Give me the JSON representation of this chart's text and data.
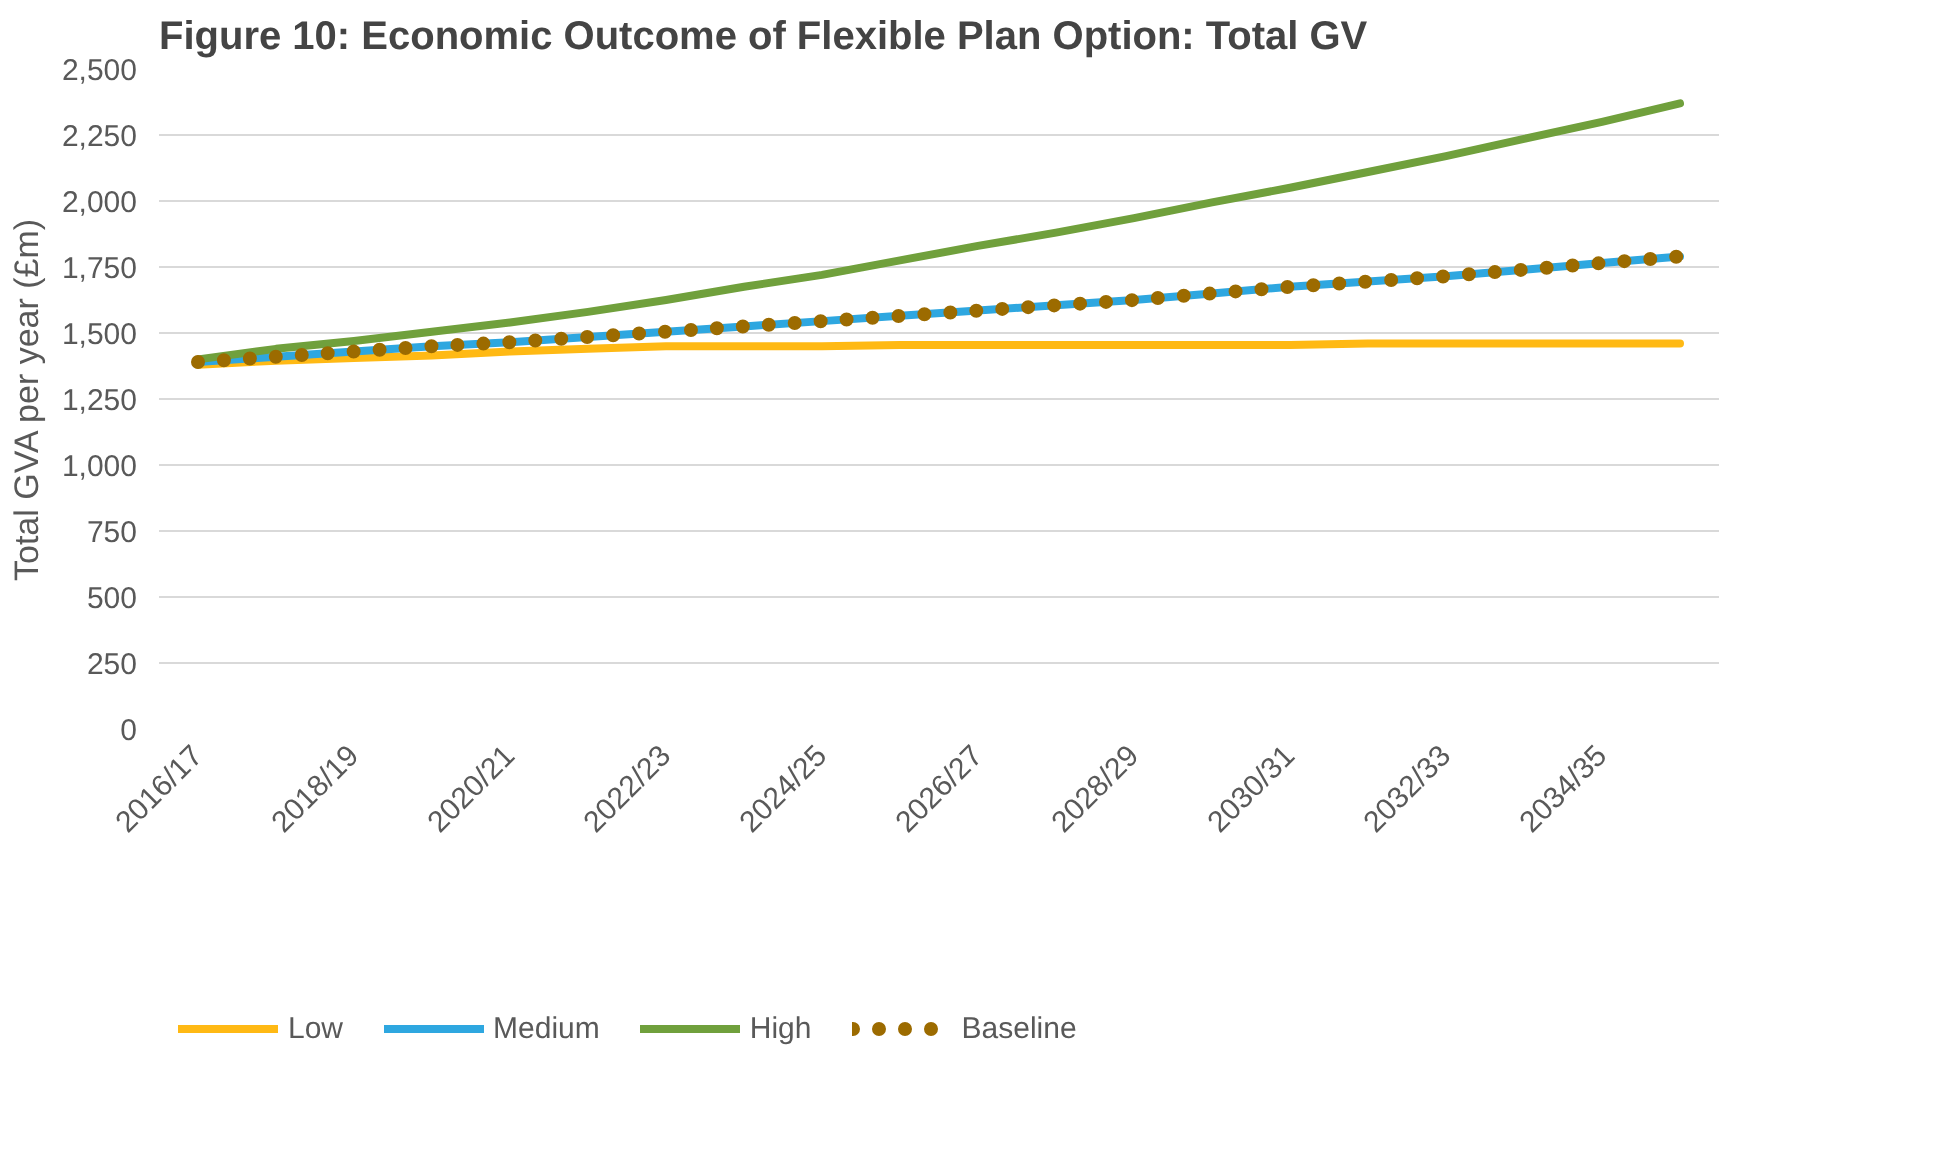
{
  "chart_data": {
    "type": "line",
    "title": "Figure 10: Economic Outcome of Flexible Plan Option: Total GV",
    "ylabel": "Total GVA per year (£m)",
    "categories": [
      "2016/17",
      null,
      "2018/19",
      null,
      "2020/21",
      null,
      "2022/23",
      null,
      "2024/25",
      null,
      "2026/27",
      null,
      "2028/29",
      null,
      "2030/31",
      null,
      "2032/33",
      null,
      "2034/35",
      null
    ],
    "series": [
      {
        "name": "Low",
        "color": "#ffb914",
        "line_style": "solid",
        "values": [
          1380,
          1395,
          1405,
          1415,
          1430,
          1440,
          1450,
          1450,
          1450,
          1455,
          1455,
          1455,
          1455,
          1455,
          1455,
          1460,
          1460,
          1460,
          1460,
          1460
        ]
      },
      {
        "name": "Medium",
        "color": "#2ea7e0",
        "line_style": "solid",
        "values": [
          1390,
          1410,
          1430,
          1450,
          1465,
          1485,
          1505,
          1525,
          1545,
          1565,
          1585,
          1605,
          1625,
          1650,
          1675,
          1695,
          1715,
          1740,
          1765,
          1790
        ]
      },
      {
        "name": "High",
        "color": "#70a03c",
        "line_style": "solid",
        "values": [
          1400,
          1440,
          1470,
          1505,
          1540,
          1580,
          1625,
          1675,
          1720,
          1775,
          1830,
          1880,
          1935,
          1995,
          2050,
          2110,
          2170,
          2235,
          2300,
          2370
        ]
      },
      {
        "name": "Baseline",
        "color": "#9c6b00",
        "line_style": "dotted",
        "values": [
          1390,
          1410,
          1430,
          1450,
          1465,
          1485,
          1505,
          1525,
          1545,
          1565,
          1585,
          1605,
          1625,
          1650,
          1675,
          1695,
          1715,
          1740,
          1765,
          1790
        ]
      }
    ],
    "ylim": [
      0,
      2500
    ],
    "yticks": [
      {
        "value": 0,
        "label": "0"
      },
      {
        "value": 250,
        "label": "250"
      },
      {
        "value": 500,
        "label": "500"
      },
      {
        "value": 750,
        "label": "750"
      },
      {
        "value": 1000,
        "label": "1,000"
      },
      {
        "value": 1250,
        "label": "1,250"
      },
      {
        "value": 1500,
        "label": "1,500"
      },
      {
        "value": 1750,
        "label": "1,750"
      },
      {
        "value": 2000,
        "label": "2,000"
      },
      {
        "value": 2250,
        "label": "2,250"
      },
      {
        "value": 2500,
        "label": "2,500"
      }
    ],
    "grid": "y",
    "legend": "bottom"
  }
}
